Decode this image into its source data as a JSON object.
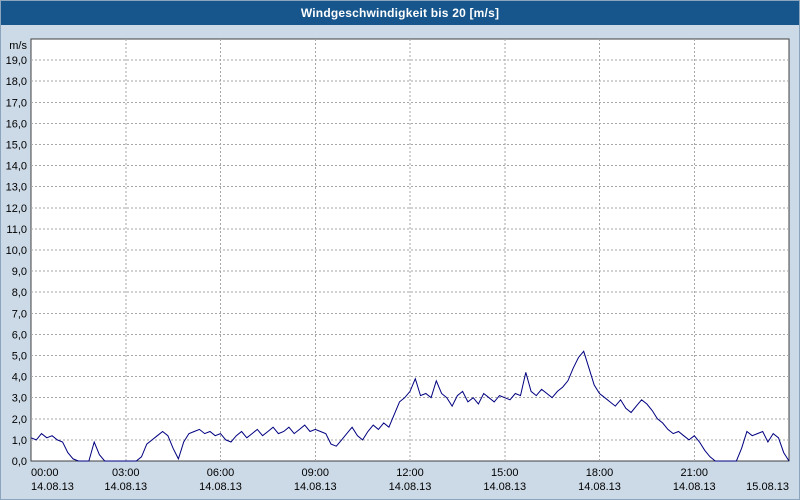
{
  "window": {
    "title": "Windgeschwindigkeit bis 20 [m/s]"
  },
  "colors": {
    "title_bar_bg": "#16568c",
    "title_text": "#ffffff",
    "chart_bg": "#ccd9e6",
    "plot_bg": "#ffffff",
    "plot_border": "#404040",
    "grid": "#a6a6a6",
    "line": "#000080",
    "axis_text": "#000000"
  },
  "chart_data": {
    "type": "line",
    "title": "Windgeschwindigkeit bis 20 [m/s]",
    "ylabel": "m/s",
    "ylim": [
      0,
      20
    ],
    "ytick_step": 1,
    "ytick_labels": [
      "0,0",
      "1,0",
      "2,0",
      "3,0",
      "4,0",
      "5,0",
      "6,0",
      "7,0",
      "8,0",
      "9,0",
      "10,0",
      "11,0",
      "12,0",
      "13,0",
      "14,0",
      "15,0",
      "16,0",
      "17,0",
      "18,0",
      "19,0"
    ],
    "grid": true,
    "xlim": [
      0,
      24
    ],
    "xticks": [
      {
        "hour": 0,
        "time": "00:00",
        "date": "14.08.13"
      },
      {
        "hour": 3,
        "time": "03:00",
        "date": "14.08.13"
      },
      {
        "hour": 6,
        "time": "06:00",
        "date": "14.08.13"
      },
      {
        "hour": 9,
        "time": "09:00",
        "date": "14.08.13"
      },
      {
        "hour": 12,
        "time": "12:00",
        "date": "14.08.13"
      },
      {
        "hour": 15,
        "time": "15:00",
        "date": "14.08.13"
      },
      {
        "hour": 18,
        "time": "18:00",
        "date": "14.08.13"
      },
      {
        "hour": 21,
        "time": "21:00",
        "date": "14.08.13"
      },
      {
        "hour": 24,
        "time": "",
        "date": "15.08.13"
      }
    ],
    "series": [
      {
        "name": "Windgeschwindigkeit",
        "color": "#000080",
        "start_hour": 0,
        "interval_hours": 0.166667,
        "values": [
          1.1,
          1.0,
          1.3,
          1.1,
          1.2,
          1.0,
          0.9,
          0.4,
          0.1,
          0.0,
          0.0,
          0.0,
          0.9,
          0.3,
          0.0,
          0.0,
          0.0,
          0.0,
          0.0,
          0.0,
          0.0,
          0.2,
          0.8,
          1.0,
          1.2,
          1.4,
          1.2,
          0.6,
          0.1,
          0.9,
          1.3,
          1.4,
          1.5,
          1.3,
          1.4,
          1.2,
          1.3,
          1.0,
          0.9,
          1.2,
          1.4,
          1.1,
          1.3,
          1.5,
          1.2,
          1.4,
          1.6,
          1.3,
          1.4,
          1.6,
          1.3,
          1.5,
          1.7,
          1.4,
          1.5,
          1.4,
          1.3,
          0.8,
          0.7,
          1.0,
          1.3,
          1.6,
          1.2,
          1.0,
          1.4,
          1.7,
          1.5,
          1.8,
          1.6,
          2.2,
          2.8,
          3.0,
          3.3,
          3.9,
          3.1,
          3.2,
          3.0,
          3.8,
          3.2,
          3.0,
          2.6,
          3.1,
          3.3,
          2.8,
          3.0,
          2.7,
          3.2,
          3.0,
          2.8,
          3.1,
          3.0,
          2.9,
          3.2,
          3.1,
          4.2,
          3.3,
          3.1,
          3.4,
          3.2,
          3.0,
          3.3,
          3.5,
          3.8,
          4.4,
          4.9,
          5.2,
          4.4,
          3.6,
          3.2,
          3.0,
          2.8,
          2.6,
          2.9,
          2.5,
          2.3,
          2.6,
          2.9,
          2.7,
          2.4,
          2.0,
          1.8,
          1.5,
          1.3,
          1.4,
          1.2,
          1.0,
          1.2,
          0.9,
          0.5,
          0.2,
          0.0,
          0.0,
          0.0,
          0.0,
          0.0,
          0.6,
          1.4,
          1.2,
          1.3,
          1.4,
          0.9,
          1.3,
          1.1,
          0.4,
          0.0
        ]
      }
    ]
  }
}
